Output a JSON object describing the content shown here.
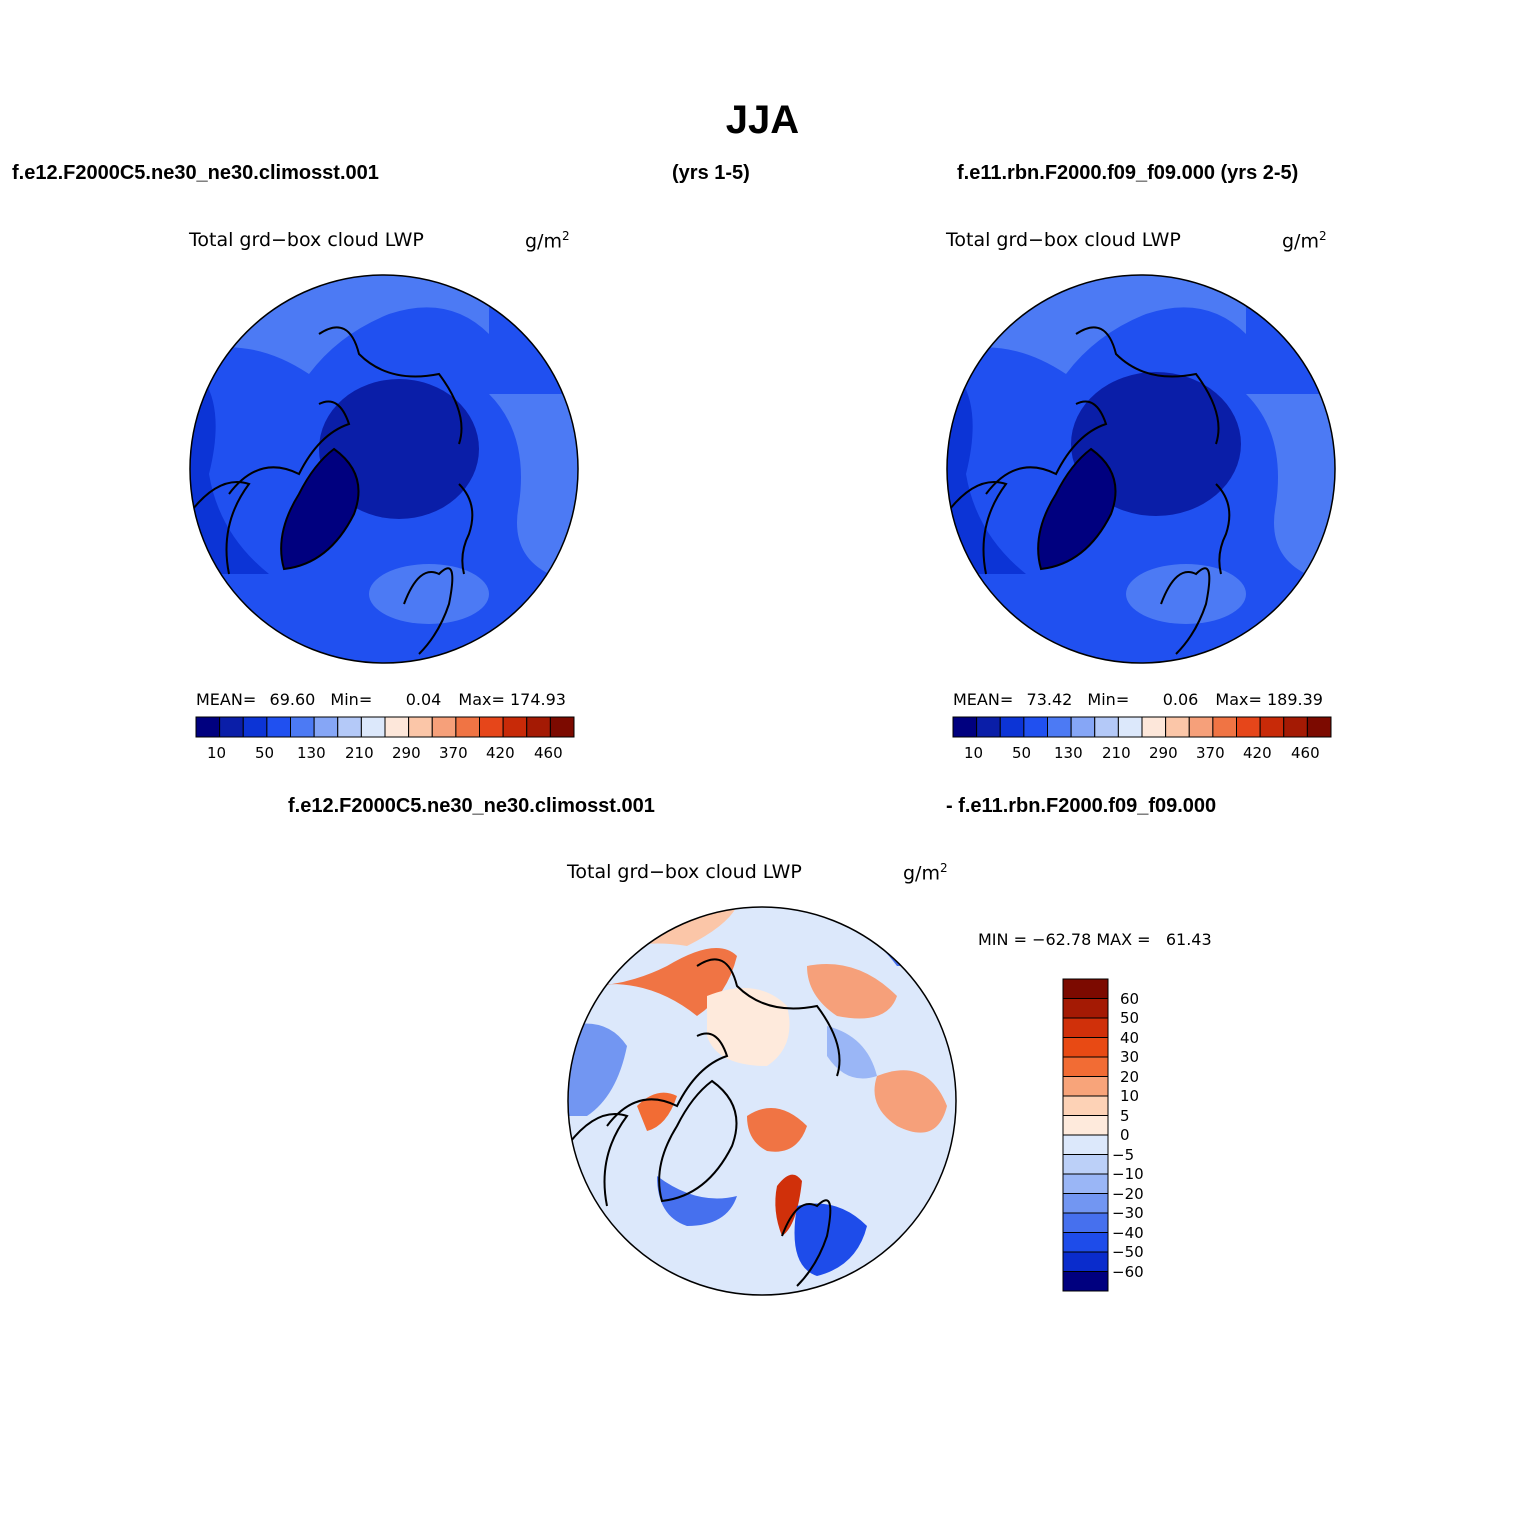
{
  "title": "JJA",
  "header": {
    "left": "f.e12.F2000C5.ne30_ne30.climosst.001",
    "middle": "(yrs 1-5)",
    "right": "f.e11.rbn.F2000.f09_f09.000 (yrs 2-5)"
  },
  "diff_header": {
    "left": "f.e12.F2000C5.ne30_ne30.climosst.001",
    "right": "- f.e11.rbn.F2000.f09_f09.000"
  },
  "panels": [
    {
      "variable": "Total grd−box cloud LWP",
      "units_base": "g/m",
      "units_exp": "2",
      "stats": {
        "mean_label": "MEAN=",
        "mean": "69.60",
        "min_label": "Min=",
        "min": "0.04",
        "max_label": "Max=",
        "max": "174.93"
      }
    },
    {
      "variable": "Total grd−box cloud LWP",
      "units_base": "g/m",
      "units_exp": "2",
      "stats": {
        "mean_label": "MEAN=",
        "mean": "73.42",
        "min_label": "Min=",
        "min": "0.06",
        "max_label": "Max=",
        "max": "189.39"
      }
    },
    {
      "variable": "Total grd−box cloud LWP",
      "units_base": "g/m",
      "units_exp": "2",
      "stats_text": "MIN = −62.78 MAX =   61.43"
    }
  ],
  "colorbar_main": {
    "colors": [
      "#00007f",
      "#0a1ea8",
      "#0c34d6",
      "#2050f0",
      "#4c7af4",
      "#86a6f6",
      "#b4c9f8",
      "#dce8fb",
      "#fde7da",
      "#fbc6a8",
      "#f6a07a",
      "#f07444",
      "#e6461a",
      "#c82a08",
      "#a41a04",
      "#7c0a00"
    ],
    "ticks": [
      "10",
      "50",
      "130",
      "210",
      "290",
      "370",
      "420",
      "460"
    ]
  },
  "colorbar_diff": {
    "colors_top_to_bottom": [
      "#7c0a00",
      "#a41a04",
      "#d0300a",
      "#e84a14",
      "#f26c34",
      "#f8a47a",
      "#fdd2b6",
      "#feeadc",
      "#dce8fb",
      "#bcd0f8",
      "#9ab6f6",
      "#7296f2",
      "#4670ee",
      "#1e4cea",
      "#0a2ccc",
      "#00007f"
    ],
    "ticks": [
      "60",
      "50",
      "40",
      "30",
      "20",
      "10",
      "5",
      "0",
      "−5",
      "−10",
      "−20",
      "−30",
      "−40",
      "−50",
      "−60"
    ]
  },
  "colors": {
    "ocean_field": "#2050f0",
    "arctic_field": "#0a1ea8",
    "greenland_field": "#00007f",
    "coastline": "#000000"
  }
}
